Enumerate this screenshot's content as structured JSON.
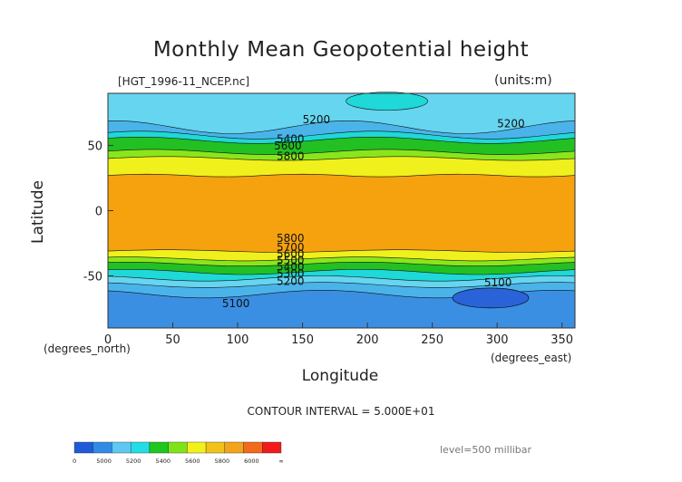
{
  "chart_data": {
    "type": "heatmap",
    "title": "Monthly Mean Geopotential height",
    "file_label": "[HGT_1996-11_NCEP.nc]",
    "units_label": "(units:m)",
    "xlabel": "Longitude",
    "ylabel": "Latitude",
    "x_units": "(degrees_north)",
    "x_units_right": "(degrees_east)",
    "xlim": [
      0,
      360
    ],
    "ylim": [
      -90,
      90
    ],
    "x_ticks": [
      0,
      50,
      100,
      150,
      200,
      250,
      300,
      350
    ],
    "y_ticks": [
      50,
      0,
      -50
    ],
    "contour_interval": "CONTOUR INTERVAL = 5.000E+01",
    "level": "level=500 millibar",
    "colorbar_labels": [
      "0",
      "5000",
      "5200",
      "5400",
      "5600",
      "5800",
      "6000",
      "∞"
    ],
    "colorbar_colors": [
      "#1f5bd6",
      "#2f8ce6",
      "#5dc8f2",
      "#23dde6",
      "#1ec71e",
      "#7fe31a",
      "#f2f21a",
      "#f2c21a",
      "#f2a41a",
      "#f26a1a",
      "#f21a1a"
    ],
    "band_colors": {
      "below_5100": "#2a62d8",
      "5100_5200": "#3a8fe3",
      "5200_5300": "#4ab4ea",
      "5300_5400": "#66d5f0",
      "5400_5500": "#1fd8d8",
      "5500_5600": "#22c022",
      "5600_5700": "#8ae61c",
      "5700_5800": "#f0f01c",
      "above_5800": "#f5a20e"
    },
    "contour_labels": [
      "5200",
      "5200",
      "5400",
      "5600",
      "5800",
      "5800",
      "5700",
      "5600",
      "5500",
      "5400",
      "5300",
      "5200",
      "5100",
      "5100"
    ],
    "lat_profile_m": [
      {
        "lat": 90,
        "z": 5200
      },
      {
        "lat": 75,
        "z": 5250
      },
      {
        "lat": 60,
        "z": 5450
      },
      {
        "lat": 50,
        "z": 5620
      },
      {
        "lat": 40,
        "z": 5780
      },
      {
        "lat": 30,
        "z": 5840
      },
      {
        "lat": 0,
        "z": 5880
      },
      {
        "lat": -30,
        "z": 5840
      },
      {
        "lat": -40,
        "z": 5720
      },
      {
        "lat": -50,
        "z": 5480
      },
      {
        "lat": -60,
        "z": 5250
      },
      {
        "lat": -70,
        "z": 5120
      },
      {
        "lat": -90,
        "z": 5080
      }
    ]
  }
}
